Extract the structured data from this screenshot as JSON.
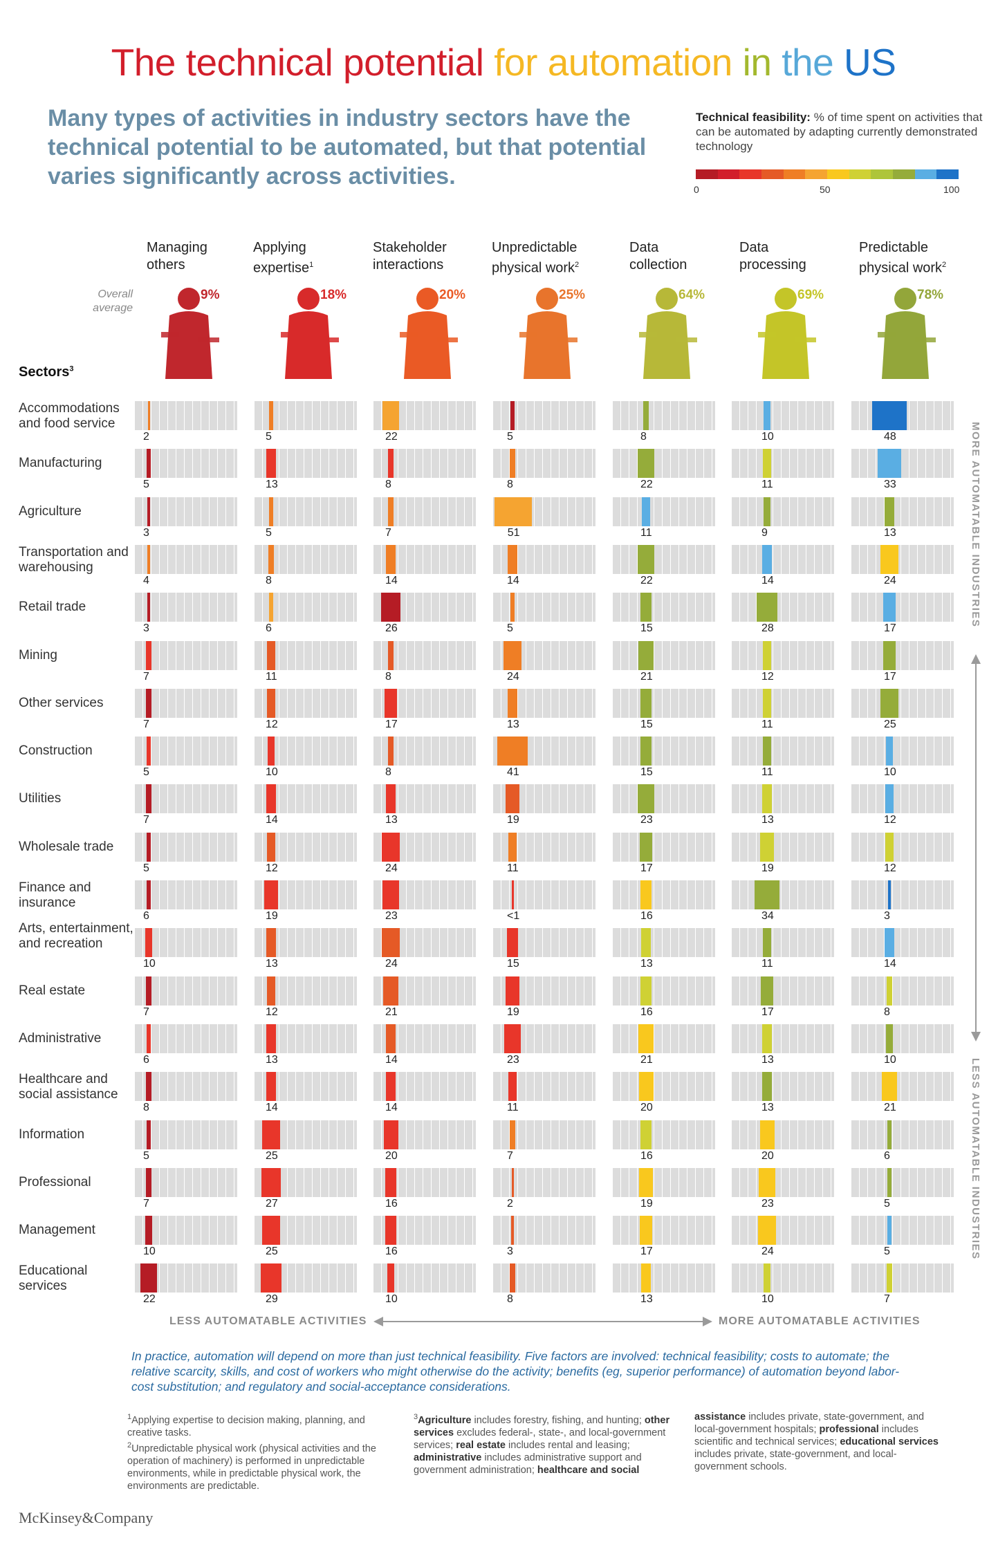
{
  "title": {
    "parts": [
      {
        "text": "The technical potential ",
        "color": "#d21e2b"
      },
      {
        "text": "for automation ",
        "color": "#f5b823"
      },
      {
        "text": "in ",
        "color": "#a3b82e"
      },
      {
        "text": "the ",
        "color": "#57a8d8"
      },
      {
        "text": "US",
        "color": "#1e73c8"
      }
    ]
  },
  "subtitle": "Many types of activities in industry sectors have the technical potential to be automated, but that potential varies significantly across activities.",
  "legend": {
    "title_bold": "Technical feasibility:",
    "title_rest": " % of time spent on activities that can be automated by adapting currently demonstrated technology",
    "colors": [
      "#b51c25",
      "#d21e2b",
      "#e8362a",
      "#e55a26",
      "#ef7e25",
      "#f5a431",
      "#f9c81e",
      "#cfd134",
      "#aec53a",
      "#95ac3a",
      "#5aaee3",
      "#1e73c8"
    ],
    "ticks": [
      "0",
      "50",
      "100"
    ]
  },
  "overall_label": "Overall average",
  "sectors_heading": "Sectors",
  "sectors_heading_sup": "3",
  "chart_data": {
    "type": "table",
    "activities": [
      {
        "name": "Managing others",
        "sup": "",
        "average": "9%",
        "color": "#c0272d",
        "icon": "businesswoman-with-tablet-icon"
      },
      {
        "name": "Applying expertise",
        "sup": "1",
        "average": "18%",
        "color": "#d82a2a",
        "icon": "scientist-with-microscope-icon"
      },
      {
        "name": "Stakeholder interactions",
        "sup": "",
        "average": "20%",
        "color": "#ea5a25",
        "icon": "waiter-with-tray-icon"
      },
      {
        "name": "Unpredictable physical work",
        "sup": "2",
        "average": "25%",
        "color": "#e8742c",
        "icon": "worker-with-chainsaw-icon"
      },
      {
        "name": "Data collection",
        "sup": "",
        "average": "64%",
        "color": "#b7b838",
        "icon": "man-with-clipboard-icon"
      },
      {
        "name": "Data processing",
        "sup": "",
        "average": "69%",
        "color": "#c4c528",
        "icon": "woman-at-desk-icon"
      },
      {
        "name": "Predictable physical work",
        "sup": "2",
        "average": "78%",
        "color": "#93a63a",
        "icon": "machinist-at-drill-icon"
      }
    ],
    "sectors": [
      {
        "name": "Accommodations and food service",
        "values": [
          "2",
          "5",
          "22",
          "5",
          "8",
          "10",
          "48"
        ],
        "colors": [
          "#ef7e25",
          "#ef7e25",
          "#f5a431",
          "#b51c25",
          "#95ac3a",
          "#5aaee3",
          "#1e73c8"
        ]
      },
      {
        "name": "Manufacturing",
        "values": [
          "5",
          "13",
          "8",
          "8",
          "22",
          "11",
          "33"
        ],
        "colors": [
          "#b51c25",
          "#e8362a",
          "#e8362a",
          "#ef7e25",
          "#95ac3a",
          "#cfd134",
          "#5aaee3"
        ]
      },
      {
        "name": "Agriculture",
        "values": [
          "3",
          "5",
          "7",
          "51",
          "11",
          "9",
          "13"
        ],
        "colors": [
          "#b51c25",
          "#ef7e25",
          "#ef7e25",
          "#f5a431",
          "#5aaee3",
          "#95ac3a",
          "#95ac3a"
        ]
      },
      {
        "name": "Transportation and warehousing",
        "values": [
          "4",
          "8",
          "14",
          "14",
          "22",
          "14",
          "24"
        ],
        "colors": [
          "#ef7e25",
          "#ef7e25",
          "#ef7e25",
          "#ef7e25",
          "#95ac3a",
          "#5aaee3",
          "#f9c81e"
        ]
      },
      {
        "name": "Retail trade",
        "values": [
          "3",
          "6",
          "26",
          "5",
          "15",
          "28",
          "17"
        ],
        "colors": [
          "#b51c25",
          "#f5a431",
          "#b51c25",
          "#ef7e25",
          "#95ac3a",
          "#95ac3a",
          "#5aaee3"
        ]
      },
      {
        "name": "Mining",
        "values": [
          "7",
          "11",
          "8",
          "24",
          "21",
          "12",
          "17"
        ],
        "colors": [
          "#e8362a",
          "#e55a26",
          "#e55a26",
          "#ef7e25",
          "#95ac3a",
          "#cfd134",
          "#95ac3a"
        ]
      },
      {
        "name": "Other services",
        "values": [
          "7",
          "12",
          "17",
          "13",
          "15",
          "11",
          "25"
        ],
        "colors": [
          "#b51c25",
          "#e55a26",
          "#e8362a",
          "#ef7e25",
          "#95ac3a",
          "#cfd134",
          "#95ac3a"
        ]
      },
      {
        "name": "Construction",
        "values": [
          "5",
          "10",
          "8",
          "41",
          "15",
          "11",
          "10"
        ],
        "colors": [
          "#e8362a",
          "#e8362a",
          "#e55a26",
          "#ef7e25",
          "#95ac3a",
          "#95ac3a",
          "#5aaee3"
        ]
      },
      {
        "name": "Utilities",
        "values": [
          "7",
          "14",
          "13",
          "19",
          "23",
          "13",
          "12"
        ],
        "colors": [
          "#b51c25",
          "#e8362a",
          "#e8362a",
          "#e55a26",
          "#95ac3a",
          "#cfd134",
          "#5aaee3"
        ]
      },
      {
        "name": "Wholesale trade",
        "values": [
          "5",
          "12",
          "24",
          "11",
          "17",
          "19",
          "12"
        ],
        "colors": [
          "#b51c25",
          "#e55a26",
          "#e8362a",
          "#ef7e25",
          "#95ac3a",
          "#cfd134",
          "#cfd134"
        ]
      },
      {
        "name": "Finance and insurance",
        "values": [
          "6",
          "19",
          "23",
          "<1",
          "16",
          "34",
          "3"
        ],
        "colors": [
          "#b51c25",
          "#e8362a",
          "#e8362a",
          "#e8362a",
          "#f9c81e",
          "#95ac3a",
          "#1e73c8"
        ]
      },
      {
        "name": "Arts, entertainment, and recreation",
        "values": [
          "10",
          "13",
          "24",
          "15",
          "13",
          "11",
          "14"
        ],
        "colors": [
          "#e8362a",
          "#e55a26",
          "#e55a26",
          "#e8362a",
          "#cfd134",
          "#95ac3a",
          "#5aaee3"
        ]
      },
      {
        "name": "Real estate",
        "values": [
          "7",
          "12",
          "21",
          "19",
          "16",
          "17",
          "8"
        ],
        "colors": [
          "#b51c25",
          "#e55a26",
          "#e55a26",
          "#e8362a",
          "#cfd134",
          "#95ac3a",
          "#cfd134"
        ]
      },
      {
        "name": "Administrative",
        "values": [
          "6",
          "13",
          "14",
          "23",
          "21",
          "13",
          "10"
        ],
        "colors": [
          "#e8362a",
          "#e8362a",
          "#e55a26",
          "#e8362a",
          "#f9c81e",
          "#cfd134",
          "#95ac3a"
        ]
      },
      {
        "name": "Healthcare and social assistance",
        "values": [
          "8",
          "14",
          "14",
          "11",
          "20",
          "13",
          "21"
        ],
        "colors": [
          "#b51c25",
          "#e8362a",
          "#e8362a",
          "#e8362a",
          "#f9c81e",
          "#95ac3a",
          "#f9c81e"
        ]
      },
      {
        "name": "Information",
        "values": [
          "5",
          "25",
          "20",
          "7",
          "16",
          "20",
          "6"
        ],
        "colors": [
          "#b51c25",
          "#e8362a",
          "#e8362a",
          "#ef7e25",
          "#cfd134",
          "#f9c81e",
          "#95ac3a"
        ]
      },
      {
        "name": "Professional",
        "values": [
          "7",
          "27",
          "16",
          "2",
          "19",
          "23",
          "5"
        ],
        "colors": [
          "#b51c25",
          "#e8362a",
          "#e8362a",
          "#e55a26",
          "#f9c81e",
          "#f9c81e",
          "#95ac3a"
        ]
      },
      {
        "name": "Management",
        "values": [
          "10",
          "25",
          "16",
          "3",
          "17",
          "24",
          "5"
        ],
        "colors": [
          "#b51c25",
          "#e8362a",
          "#e8362a",
          "#e55a26",
          "#f9c81e",
          "#f9c81e",
          "#5aaee3"
        ]
      },
      {
        "name": "Educational services",
        "values": [
          "22",
          "29",
          "10",
          "8",
          "13",
          "10",
          "7"
        ],
        "colors": [
          "#b51c25",
          "#e8362a",
          "#e8362a",
          "#e55a26",
          "#f9c81e",
          "#cfd134",
          "#cfd134"
        ]
      }
    ]
  },
  "side_top": "MORE AUTOMATABLE INDUSTRIES",
  "side_bottom": "LESS AUTOMATABLE INDUSTRIES",
  "axis_left": "LESS AUTOMATABLE ACTIVITIES",
  "axis_right": "MORE AUTOMATABLE ACTIVITIES",
  "note": "In practice, automation will depend on more than just technical feasibility. Five factors are involved: technical feasibility; costs to automate; the relative scarcity, skills, and cost of workers who might otherwise do the activity; benefits (eg, superior performance) of automation beyond labor-cost substitution; and regulatory and social-acceptance considerations.",
  "footnotes": {
    "fn1": "Applying expertise to decision making, planning, and creative tasks.",
    "fn2": "Unpredictable physical work (physical activities and the operation of machinery) is performed in unpredictable environments, while in predictable physical work, the environments are predictable.",
    "fn3_a": "Agriculture",
    "fn3_b": " includes forestry, fishing, and hunting; ",
    "fn3_c": "other services",
    "fn3_d": " excludes federal-, state-, and local-government services; ",
    "fn3_e": "real estate",
    "fn3_f": " includes rental and leasing; ",
    "fn3_g": "administrative",
    "fn3_h": " includes administrative support and government administration; ",
    "fn3_i": "healthcare and social",
    "fn3_j": "assistance",
    "fn3_k": " includes private, state-government, and local-government hospitals; ",
    "fn3_l": "professional",
    "fn3_m": " includes scientific and technical services; ",
    "fn3_n": "educational services",
    "fn3_o": " includes private, state-government, and local-government schools."
  },
  "brand": "McKinsey&Company"
}
